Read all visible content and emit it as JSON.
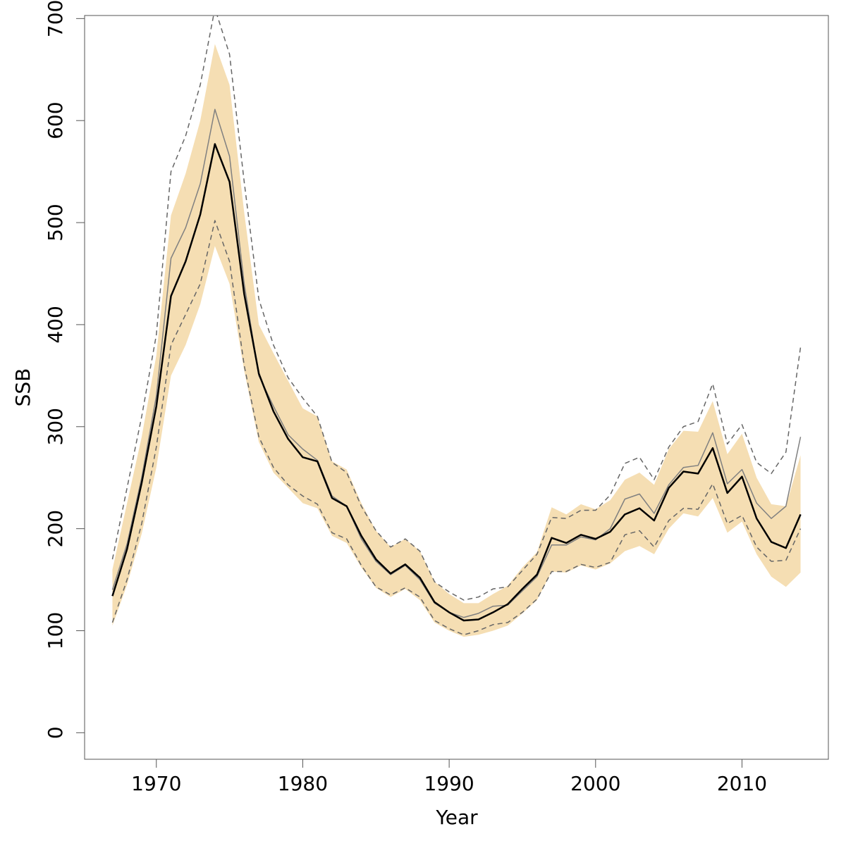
{
  "chart_data": {
    "type": "line",
    "x_label": "Year",
    "y_label": "SSB",
    "x": [
      1967,
      1968,
      1969,
      1970,
      1971,
      1972,
      1973,
      1974,
      1975,
      1976,
      1977,
      1978,
      1979,
      1980,
      1981,
      1982,
      1983,
      1984,
      1985,
      1986,
      1987,
      1988,
      1989,
      1990,
      1991,
      1992,
      1993,
      1994,
      1995,
      1996,
      1997,
      1998,
      1999,
      2000,
      2001,
      2002,
      2003,
      2004,
      2005,
      2006,
      2007,
      2008,
      2009,
      2010,
      2011,
      2012,
      2013,
      2014
    ],
    "band": {
      "color": "#f5deb3",
      "upper": [
        160,
        225,
        290,
        370,
        507,
        548,
        600,
        675,
        635,
        510,
        400,
        372,
        345,
        318,
        310,
        266,
        258,
        225,
        198,
        182,
        190,
        178,
        148,
        136,
        127,
        127,
        136,
        144,
        162,
        177,
        221,
        214,
        224,
        219,
        228,
        248,
        255,
        243,
        278,
        296,
        295,
        325,
        273,
        293,
        250,
        224,
        222,
        272
      ],
      "lower": [
        105,
        145,
        195,
        260,
        350,
        380,
        420,
        477,
        440,
        355,
        285,
        255,
        240,
        225,
        220,
        193,
        186,
        162,
        142,
        133,
        141,
        130,
        108,
        100,
        94,
        96,
        100,
        105,
        117,
        130,
        158,
        157,
        164,
        160,
        166,
        178,
        183,
        175,
        200,
        215,
        212,
        230,
        196,
        207,
        175,
        153,
        143,
        157
      ]
    },
    "series": [
      {
        "color": "#666666",
        "dash": true,
        "width": 1.5,
        "values": [
          170,
          240,
          310,
          390,
          550,
          585,
          635,
          710,
          665,
          540,
          425,
          380,
          348,
          328,
          310,
          265,
          255,
          222,
          198,
          182,
          190,
          178,
          148,
          138,
          130,
          133,
          141,
          143,
          159,
          175,
          211,
          210,
          218,
          218,
          233,
          264,
          270,
          248,
          280,
          300,
          305,
          342,
          283,
          302,
          265,
          254,
          275,
          378
        ]
      },
      {
        "color": "#666666",
        "dash": true,
        "width": 1.5,
        "values": [
          108,
          150,
          205,
          280,
          380,
          410,
          440,
          502,
          462,
          360,
          290,
          260,
          243,
          232,
          224,
          196,
          190,
          164,
          143,
          135,
          142,
          133,
          110,
          102,
          96,
          100,
          106,
          108,
          118,
          131,
          158,
          158,
          165,
          162,
          167,
          194,
          198,
          182,
          208,
          220,
          219,
          244,
          205,
          213,
          182,
          168,
          169,
          200
        ]
      },
      {
        "color": "#808080",
        "dash": false,
        "width": 1.5,
        "values": [
          140,
          185,
          250,
          330,
          465,
          495,
          538,
          611,
          565,
          440,
          350,
          320,
          292,
          278,
          267,
          232,
          222,
          190,
          168,
          155,
          164,
          150,
          127,
          118,
          113,
          117,
          124,
          125,
          139,
          153,
          184,
          184,
          192,
          189,
          200,
          229,
          234,
          215,
          243,
          260,
          262,
          294,
          244,
          258,
          225,
          210,
          222,
          290
        ]
      },
      {
        "color": "#000000",
        "dash": false,
        "width": 2.5,
        "values": [
          134,
          180,
          245,
          320,
          428,
          462,
          508,
          577,
          540,
          430,
          352,
          315,
          288,
          270,
          266,
          230,
          222,
          193,
          170,
          156,
          165,
          152,
          128,
          118,
          110,
          111,
          118,
          126,
          141,
          155,
          191,
          186,
          194,
          190,
          197,
          214,
          220,
          208,
          240,
          256,
          254,
          279,
          235,
          251,
          210,
          187,
          181,
          214
        ]
      }
    ],
    "xlim": [
      1965.1,
      2015.9
    ],
    "ylim": [
      -26,
      703
    ],
    "xticks": [
      1970,
      1980,
      1990,
      2000,
      2010
    ],
    "yticks": [
      0,
      100,
      200,
      300,
      400,
      500,
      600,
      700
    ]
  }
}
